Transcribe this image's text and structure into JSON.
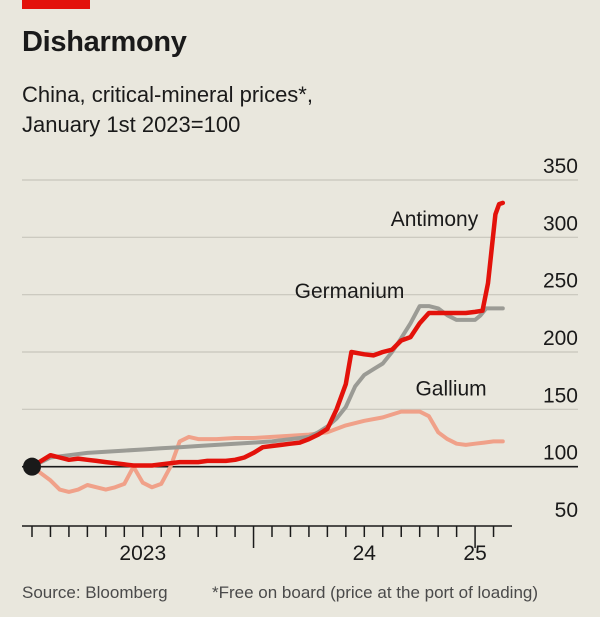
{
  "header": {
    "title": "Disharmony",
    "subtitle_line1": "China, critical-mineral prices*,",
    "subtitle_line2": "January 1st 2023=100"
  },
  "footer": {
    "source": "Source: Bloomberg",
    "note": "*Free on board (price at the port of loading)"
  },
  "colors": {
    "background": "#e9e7dd",
    "grid": "#c8c6bc",
    "axis": "#1a1a1a",
    "antimony": "#e3120b",
    "germanium": "#9b9b95",
    "gallium": "#f0a189",
    "brand": "#e3120b"
  },
  "chart_data": {
    "type": "line",
    "x_unit": "months since January 2023",
    "xlim": [
      0,
      26
    ],
    "ylim": [
      50,
      350
    ],
    "y_ticks": [
      50,
      100,
      150,
      200,
      250,
      300,
      350
    ],
    "x_tick_labels": [
      {
        "label": "2023",
        "x": 6
      },
      {
        "label": "24",
        "x": 18
      },
      {
        "label": "25",
        "x": 24
      }
    ],
    "baseline": 100,
    "grid": true,
    "series": [
      {
        "name": "Antimony",
        "color_key": "antimony",
        "points": [
          [
            0,
            100
          ],
          [
            0.5,
            105
          ],
          [
            1,
            110
          ],
          [
            1.5,
            108
          ],
          [
            2,
            106
          ],
          [
            2.5,
            107
          ],
          [
            3,
            106
          ],
          [
            3.5,
            105
          ],
          [
            4,
            104
          ],
          [
            4.5,
            103
          ],
          [
            5,
            102
          ],
          [
            5.5,
            101
          ],
          [
            6,
            101
          ],
          [
            6.5,
            101
          ],
          [
            7,
            102
          ],
          [
            7.5,
            103
          ],
          [
            8,
            104
          ],
          [
            8.5,
            104
          ],
          [
            9,
            104
          ],
          [
            9.5,
            105
          ],
          [
            10,
            105
          ],
          [
            10.5,
            105
          ],
          [
            11,
            106
          ],
          [
            11.5,
            108
          ],
          [
            12,
            112
          ],
          [
            12.5,
            117
          ],
          [
            13,
            118
          ],
          [
            13.5,
            119
          ],
          [
            14,
            120
          ],
          [
            14.5,
            121
          ],
          [
            15,
            124
          ],
          [
            15.5,
            128
          ],
          [
            16,
            133
          ],
          [
            16.5,
            150
          ],
          [
            17,
            172
          ],
          [
            17.3,
            200
          ],
          [
            18,
            198
          ],
          [
            18.5,
            197
          ],
          [
            19,
            200
          ],
          [
            19.5,
            202
          ],
          [
            20,
            210
          ],
          [
            20.5,
            213
          ],
          [
            21,
            225
          ],
          [
            21.5,
            234
          ],
          [
            22,
            234
          ],
          [
            22.5,
            234
          ],
          [
            23,
            234
          ],
          [
            23.5,
            234
          ],
          [
            24,
            235
          ],
          [
            24.4,
            236
          ],
          [
            24.7,
            260
          ],
          [
            24.9,
            290
          ],
          [
            25.1,
            320
          ],
          [
            25.3,
            329
          ],
          [
            25.5,
            330
          ]
        ]
      },
      {
        "name": "Germanium",
        "color_key": "germanium",
        "points": [
          [
            0,
            100
          ],
          [
            0.5,
            104
          ],
          [
            1,
            108
          ],
          [
            2,
            110
          ],
          [
            3,
            112
          ],
          [
            4,
            113
          ],
          [
            5,
            114
          ],
          [
            6,
            115
          ],
          [
            7,
            116
          ],
          [
            8,
            117
          ],
          [
            9,
            118
          ],
          [
            10,
            119
          ],
          [
            11,
            120
          ],
          [
            12,
            121
          ],
          [
            13,
            122
          ],
          [
            14,
            124
          ],
          [
            15,
            126
          ],
          [
            15.5,
            130
          ],
          [
            16,
            135
          ],
          [
            16.5,
            142
          ],
          [
            17,
            152
          ],
          [
            17.5,
            170
          ],
          [
            18,
            180
          ],
          [
            18.5,
            185
          ],
          [
            19,
            190
          ],
          [
            19.5,
            200
          ],
          [
            20,
            212
          ],
          [
            20.5,
            225
          ],
          [
            21,
            240
          ],
          [
            21.5,
            240
          ],
          [
            22,
            238
          ],
          [
            22.5,
            232
          ],
          [
            23,
            228
          ],
          [
            23.5,
            228
          ],
          [
            24,
            228
          ],
          [
            24.3,
            232
          ],
          [
            24.6,
            238
          ],
          [
            25,
            238
          ],
          [
            25.5,
            238
          ]
        ]
      },
      {
        "name": "Gallium",
        "color_key": "gallium",
        "points": [
          [
            0,
            100
          ],
          [
            1,
            88
          ],
          [
            1.5,
            80
          ],
          [
            2,
            78
          ],
          [
            2.5,
            80
          ],
          [
            3,
            84
          ],
          [
            3.5,
            82
          ],
          [
            4,
            80
          ],
          [
            4.5,
            82
          ],
          [
            5,
            85
          ],
          [
            5.5,
            100
          ],
          [
            6,
            86
          ],
          [
            6.5,
            82
          ],
          [
            7,
            85
          ],
          [
            7.5,
            100
          ],
          [
            8,
            122
          ],
          [
            8.5,
            126
          ],
          [
            9,
            124
          ],
          [
            10,
            124
          ],
          [
            11,
            125
          ],
          [
            12,
            125
          ],
          [
            13,
            126
          ],
          [
            14,
            127
          ],
          [
            15,
            128
          ],
          [
            16,
            130
          ],
          [
            17,
            136
          ],
          [
            18,
            140
          ],
          [
            19,
            143
          ],
          [
            20,
            148
          ],
          [
            21,
            148
          ],
          [
            21.5,
            144
          ],
          [
            22,
            130
          ],
          [
            22.5,
            124
          ],
          [
            23,
            120
          ],
          [
            23.5,
            119
          ],
          [
            24,
            120
          ],
          [
            24.5,
            121
          ],
          [
            25,
            122
          ],
          [
            25.5,
            122
          ]
        ]
      }
    ],
    "labels": [
      {
        "series": "Antimony",
        "text": "Antimony",
        "x": 21.8,
        "y": 310
      },
      {
        "series": "Germanium",
        "text": "Germanium",
        "x": 17.2,
        "y": 247
      },
      {
        "series": "Gallium",
        "text": "Gallium",
        "x": 22.7,
        "y": 162
      }
    ]
  }
}
